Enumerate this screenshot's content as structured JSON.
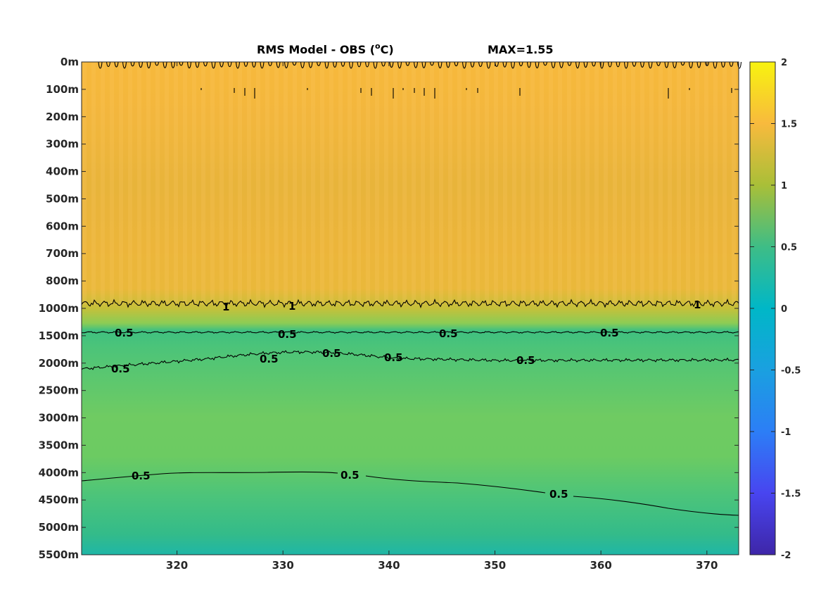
{
  "chart_data": {
    "type": "heatmap",
    "title": "RMS Model - OBS (°C)",
    "title_unit_sup": "o",
    "title_prefix": "RMS Model - OBS (",
    "title_suffix": "C)",
    "max_label": "MAX=1.55",
    "xlabel": "",
    "ylabel": "",
    "xlim": [
      311,
      373
    ],
    "x_ticks": [
      320,
      330,
      340,
      350,
      360,
      370
    ],
    "y_ticks": [
      "0m",
      "100m",
      "200m",
      "300m",
      "400m",
      "500m",
      "600m",
      "700m",
      "800m",
      "1000m",
      "1500m",
      "2000m",
      "2500m",
      "3000m",
      "3500m",
      "4000m",
      "4500m",
      "5000m",
      "5500m"
    ],
    "colorbar": {
      "range": [
        -2,
        2
      ],
      "ticks": [
        2,
        1.5,
        1,
        0.5,
        0,
        -0.5,
        -1,
        -1.5,
        -2
      ],
      "colormap": "parula"
    },
    "depth_profile": [
      {
        "depth": "0m",
        "value": 1.38
      },
      {
        "depth": "100m",
        "value": 1.35
      },
      {
        "depth": "200m",
        "value": 1.33
      },
      {
        "depth": "300m",
        "value": 1.3
      },
      {
        "depth": "400m",
        "value": 1.29
      },
      {
        "depth": "500m",
        "value": 1.3
      },
      {
        "depth": "600m",
        "value": 1.31
      },
      {
        "depth": "700m",
        "value": 1.32
      },
      {
        "depth": "800m",
        "value": 1.28
      },
      {
        "depth": "1000m",
        "value": 0.95
      },
      {
        "depth": "1500m",
        "value": 0.55
      },
      {
        "depth": "2000m",
        "value": 0.62
      },
      {
        "depth": "2500m",
        "value": 0.68
      },
      {
        "depth": "3000m",
        "value": 0.72
      },
      {
        "depth": "3500m",
        "value": 0.68
      },
      {
        "depth": "4000m",
        "value": 0.58
      },
      {
        "depth": "4500m",
        "value": 0.45
      },
      {
        "depth": "5000m",
        "value": 0.4
      },
      {
        "depth": "5500m",
        "value": 0.3
      }
    ],
    "contour_labels": [
      "1",
      "0.5"
    ]
  }
}
